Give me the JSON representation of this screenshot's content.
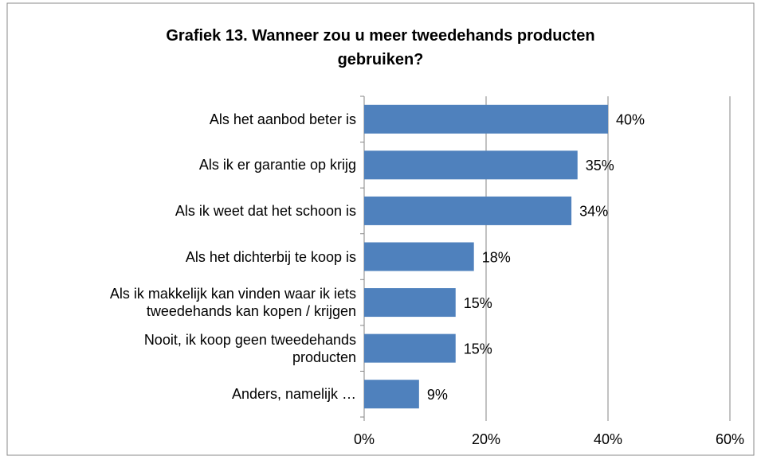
{
  "chart_data": {
    "type": "bar",
    "orientation": "horizontal",
    "title": "Grafiek 13. Wanneer zou u meer tweedehands producten\ngebruiken?",
    "categories": [
      "Als het aanbod beter is",
      "Als ik er garantie op krijg",
      "Als ik weet dat het schoon is",
      "Als het dichterbij te koop is",
      "Als ik makkelijk kan vinden waar ik iets\ntweedehands kan kopen / krijgen",
      "Nooit, ik koop geen tweedehands\nproducten",
      "Anders, namelijk …"
    ],
    "values": [
      40,
      35,
      34,
      18,
      15,
      15,
      9
    ],
    "value_labels": [
      "40%",
      "35%",
      "34%",
      "18%",
      "15%",
      "15%",
      "9%"
    ],
    "color": "#4f81bd",
    "xlim": [
      0,
      60
    ],
    "xticks": [
      {
        "value": 0,
        "label": "0%"
      },
      {
        "value": 20,
        "label": "20%"
      },
      {
        "value": 40,
        "label": "40%"
      },
      {
        "value": 60,
        "label": "60%"
      }
    ],
    "grid": true
  }
}
